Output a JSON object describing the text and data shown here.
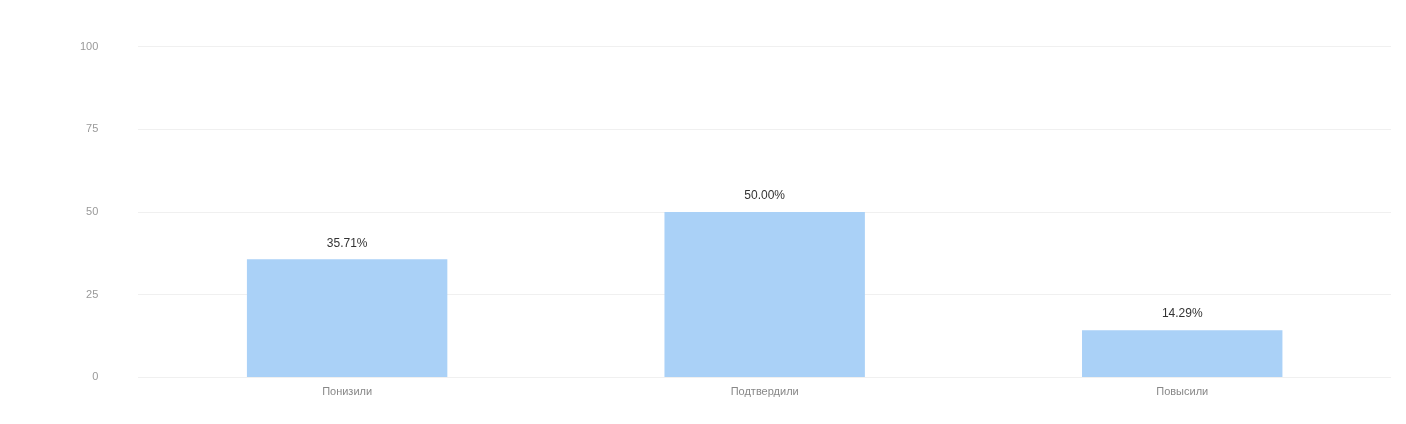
{
  "chart_data": {
    "type": "bar",
    "categories": [
      "Понизили",
      "Подтвердили",
      "Повысили"
    ],
    "values": [
      35.71,
      50.0,
      14.29
    ],
    "value_labels": [
      "35.71%",
      "50.00%",
      "14.29%"
    ],
    "color": "#aad1f7",
    "ylim": [
      0,
      100
    ],
    "yticks": [
      0,
      25,
      50,
      75,
      100
    ],
    "grid": "y",
    "legend": false
  }
}
